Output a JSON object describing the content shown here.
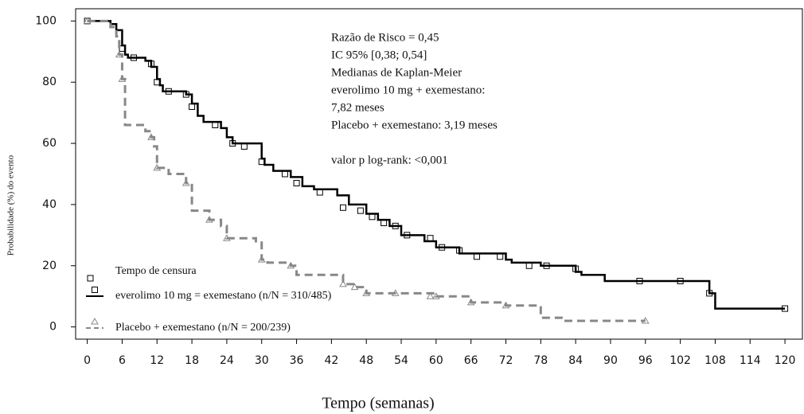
{
  "chart_data": {
    "type": "step",
    "x_label": "Tempo (semanas)",
    "y_label": "Probabilidade (%) do evento",
    "annotations": [
      "Razão de Risco = 0,45",
      "IC 95% [0,38; 0,54]",
      "Medianas de Kaplan-Meier",
      "everolimo 10 mg + exemestano:",
      "7,82 meses",
      "Placebo + exemestano: 3,19 meses",
      "valor p log-rank: <0,001"
    ],
    "legend_title": "Tempo de censura",
    "xlim": [
      -2,
      123
    ],
    "ylim": [
      -4,
      104
    ],
    "xticks": [
      0,
      6,
      12,
      18,
      24,
      30,
      36,
      42,
      48,
      54,
      60,
      66,
      72,
      78,
      84,
      90,
      96,
      102,
      108,
      114,
      120
    ],
    "yticks": [
      0,
      20,
      40,
      60,
      80,
      100
    ],
    "series": [
      {
        "name": "everolimo 10 mg = exemestano (n/N = 310/485)",
        "color": "#000000",
        "dashed": false,
        "marker": "square",
        "x": [
          0,
          4,
          5,
          6,
          6.5,
          7,
          10,
          11,
          12,
          12.5,
          13,
          17,
          18,
          19,
          20,
          23,
          24,
          25,
          30,
          30.5,
          32,
          35,
          37,
          39,
          43,
          45,
          48,
          50,
          52,
          54,
          58,
          60,
          64,
          72,
          73,
          78,
          84,
          85,
          89,
          102,
          107,
          108,
          120
        ],
        "values": [
          100,
          99,
          97,
          92,
          89,
          88,
          87,
          85,
          81,
          79,
          77,
          76,
          73,
          69,
          67,
          65,
          62,
          60,
          55,
          53,
          51,
          49,
          46,
          45,
          43,
          40,
          37,
          35,
          33,
          30,
          28,
          26,
          24,
          22,
          21,
          20,
          18,
          17,
          15,
          15,
          11,
          6,
          6
        ],
        "censored_x": [
          0,
          6,
          8,
          11,
          12,
          14,
          17,
          18,
          22,
          25,
          27,
          30,
          34,
          36,
          40,
          44,
          47,
          49,
          51,
          53,
          55,
          59,
          61,
          64,
          67,
          71,
          76,
          79,
          84,
          95,
          102,
          107,
          120
        ],
        "censored_y": [
          100,
          91,
          88,
          86,
          80,
          77,
          76,
          72,
          66,
          60,
          59,
          54,
          50,
          47,
          44,
          39,
          38,
          36,
          34,
          33,
          30,
          29,
          26,
          25,
          23,
          23,
          20,
          20,
          19,
          15,
          15,
          11,
          6
        ]
      },
      {
        "name": "Placebo + exemestano (n/N = 200/239)",
        "color": "#888888",
        "dashed": true,
        "marker": "triangle",
        "x": [
          0,
          4,
          5,
          5.5,
          6,
          6.5,
          10,
          11,
          11.5,
          12,
          14,
          17,
          18,
          21,
          23,
          24,
          29,
          30,
          31,
          35,
          36,
          44,
          46,
          48,
          60,
          66,
          72,
          78,
          82,
          96
        ],
        "values": [
          100,
          98,
          95,
          89,
          81,
          66,
          64,
          62,
          59,
          52,
          50,
          47,
          38,
          35,
          33,
          29,
          28,
          22,
          21,
          20,
          17,
          14,
          13,
          11,
          10,
          8,
          7,
          3,
          2,
          2
        ],
        "censored_x": [
          0,
          5.5,
          6,
          11,
          12,
          17,
          21,
          24,
          30,
          35,
          44,
          46,
          48,
          53,
          59,
          60,
          66,
          72,
          96
        ],
        "censored_y": [
          100,
          89,
          81,
          62,
          52,
          47,
          35,
          29,
          22,
          20,
          14,
          13,
          11,
          11,
          10,
          10,
          8,
          7,
          2
        ]
      }
    ]
  }
}
